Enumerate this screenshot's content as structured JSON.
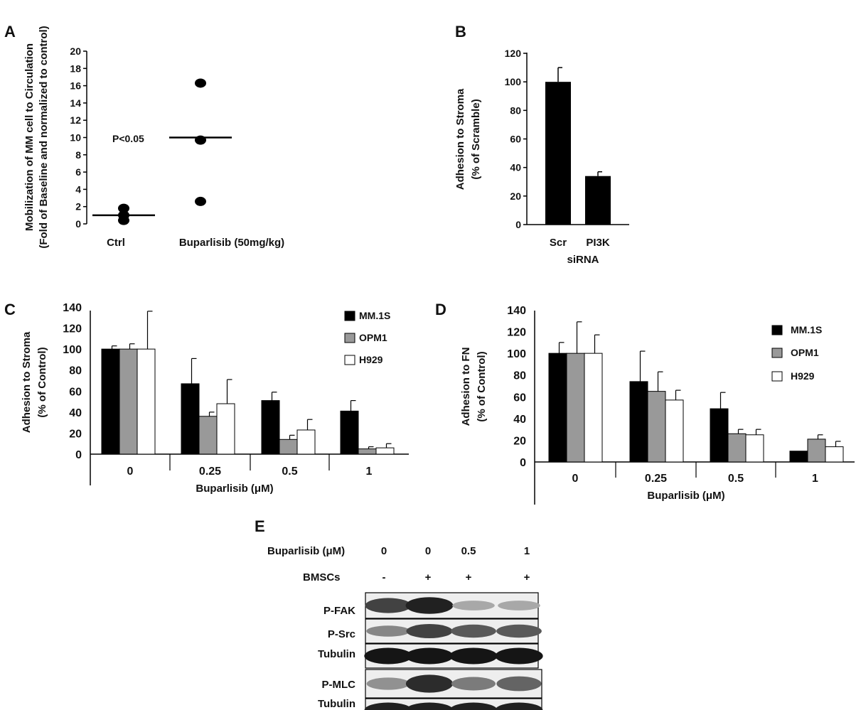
{
  "panel_labels": {
    "a": "A",
    "b": "B",
    "c": "C",
    "d": "D",
    "e": "E"
  },
  "chart_data": [
    {
      "panel": "A",
      "type": "scatter",
      "ylabel_line1": "Mobilization of MM cell to Circulation",
      "ylabel_line2": "(Fold of Baseline and normalized to control)",
      "categories": [
        "Ctrl",
        "Buparlisib (50mg/kg)"
      ],
      "ylim": [
        0,
        20
      ],
      "yticks": [
        "0",
        "2",
        "4",
        "6",
        "8",
        "10",
        "12",
        "14",
        "16",
        "18",
        "20"
      ],
      "points": [
        [
          1.8,
          1.0,
          0.4
        ],
        [
          16.3,
          9.7,
          2.6
        ]
      ],
      "means": [
        1.0,
        10.0
      ],
      "annotation": "P<0.05"
    },
    {
      "panel": "B",
      "type": "bar",
      "ylabel_line1": "Adhesion to Stroma",
      "ylabel_line2": "(% of Scramble)",
      "xlabel": "siRNA",
      "categories": [
        "Scr",
        "PI3K"
      ],
      "values": [
        100,
        34
      ],
      "errors": [
        10,
        3
      ],
      "ylim": [
        0,
        120
      ],
      "yticks": [
        "0",
        "20",
        "40",
        "60",
        "80",
        "100",
        "120"
      ]
    },
    {
      "panel": "C",
      "type": "bar",
      "ylabel_line1": "Adhesion to Stroma",
      "ylabel_line2": "(% of Control)",
      "xlabel": "Buparlisib (μM)",
      "categories": [
        "0",
        "0.25",
        "0.5",
        "1"
      ],
      "ylim": [
        0,
        140
      ],
      "yticks": [
        "0",
        "20",
        "40",
        "60",
        "80",
        "100",
        "120",
        "140"
      ],
      "series": [
        {
          "name": "MM.1S",
          "color": "#000000",
          "values": [
            100,
            67,
            51,
            41
          ],
          "errors": [
            3,
            24,
            8,
            10
          ]
        },
        {
          "name": "OPM1",
          "color": "#999999",
          "values": [
            100,
            36,
            14,
            5
          ],
          "errors": [
            5,
            4,
            4,
            2
          ]
        },
        {
          "name": "H929",
          "color": "#ffffff",
          "values": [
            100,
            48,
            23,
            6
          ],
          "errors": [
            36,
            23,
            10,
            4
          ]
        }
      ]
    },
    {
      "panel": "D",
      "type": "bar",
      "ylabel_line1": "Adhesion to FN",
      "ylabel_line2": "(% of Control)",
      "xlabel": "Buparlisib (μM)",
      "categories": [
        "0",
        "0.25",
        "0.5",
        "1"
      ],
      "ylim": [
        0,
        140
      ],
      "yticks": [
        "0",
        "20",
        "40",
        "60",
        "80",
        "100",
        "120",
        "140"
      ],
      "series": [
        {
          "name": "MM.1S",
          "color": "#000000",
          "values": [
            100,
            74,
            49,
            10
          ],
          "errors": [
            10,
            28,
            15,
            0
          ]
        },
        {
          "name": "OPM1",
          "color": "#999999",
          "values": [
            100,
            65,
            26,
            21
          ],
          "errors": [
            29,
            18,
            4,
            4
          ]
        },
        {
          "name": "H929",
          "color": "#ffffff",
          "values": [
            100,
            57,
            25,
            14
          ],
          "errors": [
            17,
            9,
            5,
            5
          ]
        }
      ]
    }
  ],
  "western_blot": {
    "row1_label": "Buparlisib (μM)",
    "row1_values": [
      "0",
      "0",
      "0.5",
      "1"
    ],
    "row2_label": "BMSCs",
    "row2_values": [
      "-",
      "+",
      "+",
      "+"
    ],
    "band_labels": [
      "P-FAK",
      "P-Src",
      "Tubulin",
      "P-MLC",
      "Tubulin"
    ],
    "intensities": [
      [
        0.75,
        0.9,
        0.3,
        0.3
      ],
      [
        0.45,
        0.75,
        0.65,
        0.65
      ],
      [
        0.95,
        0.95,
        0.95,
        0.95
      ],
      [
        0.4,
        0.85,
        0.5,
        0.6
      ],
      [
        0.9,
        0.9,
        0.9,
        0.9
      ]
    ]
  }
}
